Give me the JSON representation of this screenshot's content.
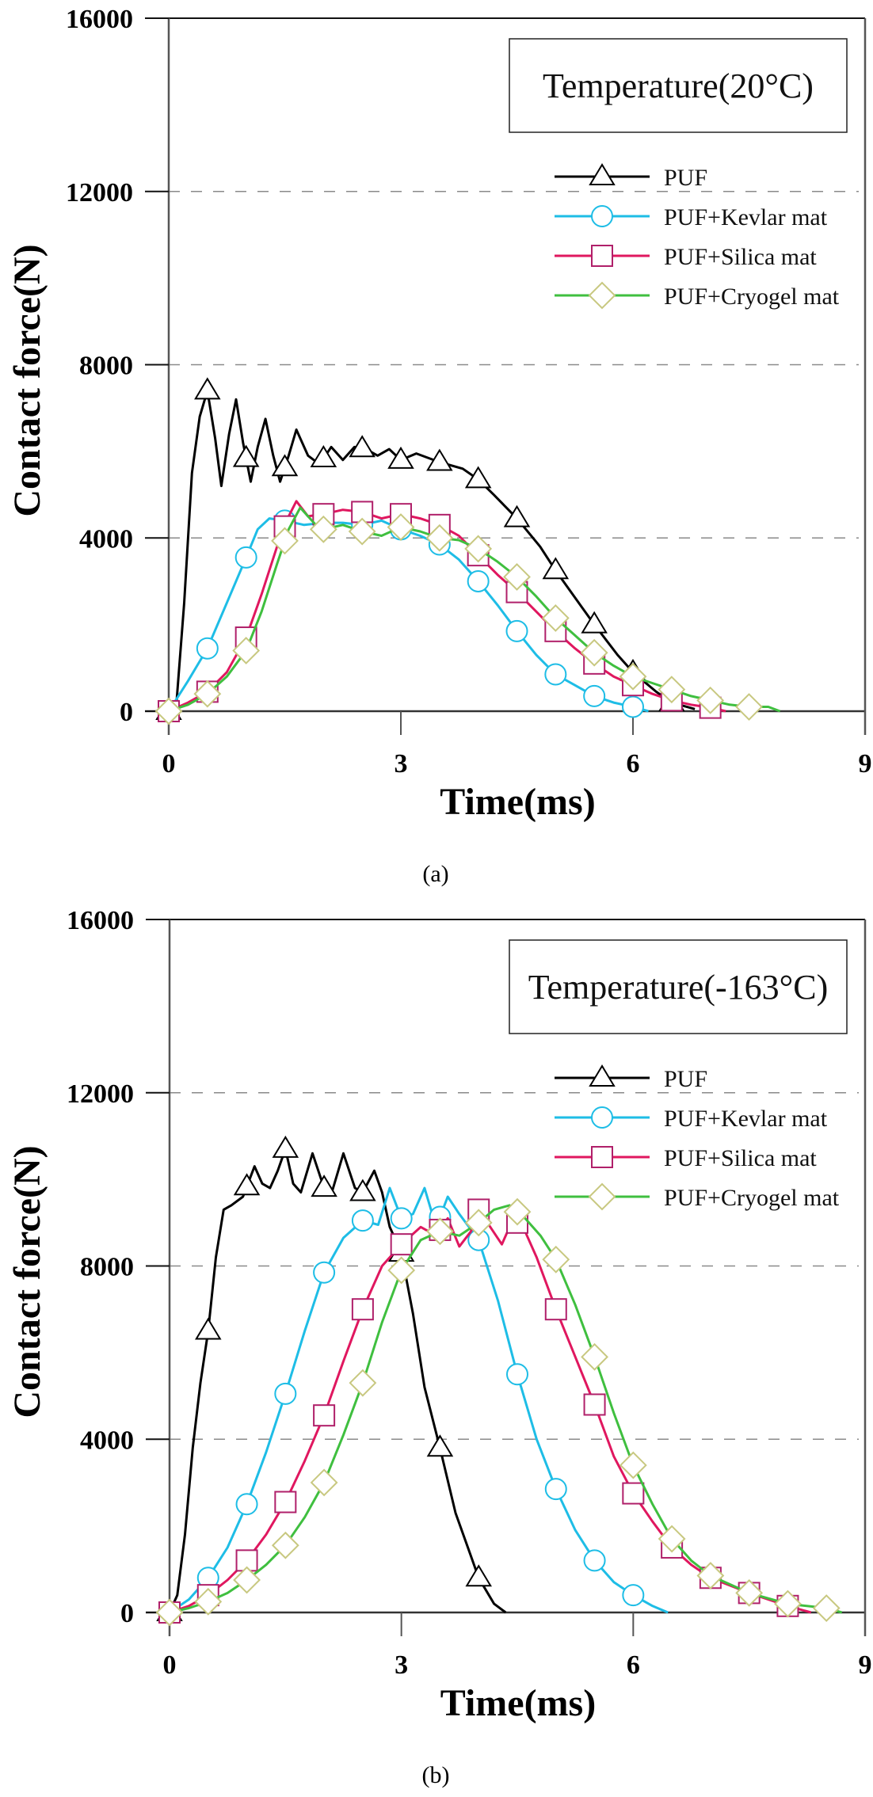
{
  "chart_data": [
    {
      "type": "line",
      "panel": "a",
      "caption": "(a)",
      "annotation": "Temperature(20°C)",
      "xlabel": "Time(ms)",
      "ylabel": "Contact force(N)",
      "xlim": [
        0,
        9
      ],
      "ylim": [
        0,
        16000
      ],
      "xticks": [
        0,
        3,
        6,
        9
      ],
      "yticks": [
        0,
        4000,
        8000,
        12000,
        16000
      ],
      "grid": "dashed horizontal at 4000, 8000, 12000",
      "legend": "right, below annotation box",
      "series": [
        {
          "name": "PUF",
          "color": "#000000",
          "marker": "triangle",
          "x": [
            0,
            0.1,
            0.2,
            0.3,
            0.4,
            0.5,
            0.6,
            0.68,
            0.78,
            0.87,
            0.96,
            1.06,
            1.15,
            1.25,
            1.35,
            1.44,
            1.55,
            1.65,
            1.8,
            1.95,
            2.1,
            2.25,
            2.4,
            2.55,
            2.7,
            2.85,
            3.0,
            3.2,
            3.5,
            3.8,
            4.0,
            4.2,
            4.5,
            4.8,
            5.0,
            5.3,
            5.5,
            5.8,
            6.0,
            6.3,
            6.5,
            6.8
          ],
          "y": [
            0,
            200,
            2500,
            5500,
            6800,
            7400,
            6300,
            5200,
            6400,
            7200,
            6200,
            5300,
            6100,
            6750,
            5900,
            5300,
            5900,
            6500,
            5900,
            5700,
            6100,
            5800,
            6100,
            6050,
            5900,
            6050,
            5800,
            5950,
            5750,
            5600,
            5350,
            5000,
            4450,
            3800,
            3250,
            2500,
            2000,
            1300,
            900,
            450,
            200,
            50
          ],
          "marker_x": [
            0,
            0.5,
            1.0,
            1.5,
            2.0,
            2.5,
            3.0,
            3.5,
            4.0,
            4.5,
            5.0,
            5.5,
            6.0,
            6.5
          ]
        },
        {
          "name": "PUF+Kevlar mat",
          "color": "#1ebde6",
          "marker": "circle",
          "x": [
            0,
            0.25,
            0.5,
            0.75,
            1.0,
            1.15,
            1.3,
            1.5,
            1.75,
            2.0,
            2.25,
            2.5,
            2.75,
            3.0,
            3.25,
            3.5,
            3.75,
            4.0,
            4.25,
            4.5,
            4.75,
            5.0,
            5.25,
            5.5,
            5.75,
            6.0,
            6.2
          ],
          "y": [
            0,
            700,
            1450,
            2500,
            3550,
            4200,
            4450,
            4400,
            4300,
            4350,
            4350,
            4300,
            4400,
            4200,
            4050,
            3850,
            3500,
            3000,
            2450,
            1850,
            1300,
            850,
            600,
            350,
            200,
            100,
            0
          ],
          "marker_x": [
            0,
            0.5,
            1.0,
            1.5,
            2.0,
            2.5,
            3.0,
            3.5,
            4.0,
            4.5,
            5.0,
            5.5,
            6.0
          ]
        },
        {
          "name": "PUF+Silica mat",
          "color": "#e0175f",
          "marker": "square",
          "x": [
            0,
            0.25,
            0.5,
            0.75,
            1.0,
            1.2,
            1.4,
            1.55,
            1.65,
            1.8,
            2.0,
            2.25,
            2.5,
            2.75,
            3.0,
            3.25,
            3.5,
            3.75,
            4.0,
            4.25,
            4.5,
            4.75,
            5.0,
            5.25,
            5.5,
            5.75,
            6.0,
            6.25,
            6.5,
            6.75,
            7.0,
            7.2
          ],
          "y": [
            0,
            200,
            450,
            900,
            1700,
            2700,
            3800,
            4500,
            4850,
            4500,
            4550,
            4650,
            4600,
            4450,
            4550,
            4450,
            4300,
            4050,
            3600,
            3150,
            2750,
            2300,
            1850,
            1450,
            1100,
            800,
            600,
            400,
            250,
            150,
            80,
            0
          ],
          "marker_x": [
            0,
            0.5,
            1.0,
            1.5,
            2.0,
            2.5,
            3.0,
            3.5,
            4.0,
            4.5,
            5.0,
            5.5,
            6.0,
            6.5,
            7.0
          ]
        },
        {
          "name": "PUF+Cryogel mat",
          "color": "#3fbf3f",
          "marker_color": "#c8c880",
          "marker": "diamond",
          "x": [
            0,
            0.25,
            0.5,
            0.75,
            1.0,
            1.2,
            1.4,
            1.55,
            1.7,
            1.9,
            2.0,
            2.25,
            2.5,
            2.75,
            3.0,
            3.25,
            3.5,
            3.75,
            4.0,
            4.25,
            4.5,
            4.75,
            5.0,
            5.25,
            5.5,
            5.75,
            6.0,
            6.25,
            6.5,
            6.75,
            7.0,
            7.25,
            7.5,
            7.75,
            7.9
          ],
          "y": [
            0,
            150,
            400,
            800,
            1400,
            2300,
            3400,
            4200,
            4700,
            4300,
            4200,
            4300,
            4150,
            4050,
            4250,
            4150,
            4000,
            3950,
            3750,
            3450,
            3100,
            2650,
            2150,
            1750,
            1350,
            1050,
            800,
            650,
            500,
            350,
            250,
            150,
            100,
            100,
            0
          ],
          "marker_x": [
            0,
            0.5,
            1.0,
            1.5,
            2.0,
            2.5,
            3.0,
            3.5,
            4.0,
            4.5,
            5.0,
            5.5,
            6.0,
            6.5,
            7.0,
            7.5
          ]
        }
      ]
    },
    {
      "type": "line",
      "panel": "b",
      "caption": "(b)",
      "annotation": "Temperature(-163°C)",
      "xlabel": "Time(ms)",
      "ylabel": "Contact force(N)",
      "xlim": [
        0,
        9
      ],
      "ylim": [
        0,
        16000
      ],
      "xticks": [
        0,
        3,
        6,
        9
      ],
      "yticks": [
        0,
        4000,
        8000,
        12000,
        16000
      ],
      "grid": "dashed horizontal at 4000, 8000, 12000",
      "legend": "right, below annotation box",
      "series": [
        {
          "name": "PUF",
          "color": "#000000",
          "marker": "triangle",
          "x": [
            0,
            0.1,
            0.2,
            0.3,
            0.4,
            0.5,
            0.6,
            0.7,
            0.8,
            0.95,
            1.1,
            1.2,
            1.3,
            1.4,
            1.5,
            1.6,
            1.7,
            1.85,
            2.0,
            2.1,
            2.25,
            2.4,
            2.5,
            2.65,
            2.75,
            2.85,
            3.0,
            3.15,
            3.3,
            3.5,
            3.7,
            3.9,
            4.0,
            4.2,
            4.35
          ],
          "y": [
            0,
            400,
            1800,
            3800,
            5300,
            6500,
            8200,
            9300,
            9400,
            9600,
            10300,
            9900,
            9800,
            10200,
            10700,
            9900,
            9700,
            10600,
            9800,
            9700,
            10600,
            9800,
            9700,
            10200,
            9700,
            8900,
            8300,
            6900,
            5200,
            3800,
            2300,
            1300,
            800,
            200,
            0
          ],
          "marker_x": [
            0,
            0.5,
            1.0,
            1.5,
            2.0,
            2.5,
            3.0,
            3.5,
            4.0
          ]
        },
        {
          "name": "PUF+Kevlar mat",
          "color": "#1ebde6",
          "marker": "circle",
          "x": [
            0,
            0.25,
            0.5,
            0.75,
            1.0,
            1.25,
            1.5,
            1.75,
            2.0,
            2.25,
            2.5,
            2.7,
            2.85,
            3.0,
            3.15,
            3.3,
            3.45,
            3.6,
            3.75,
            4.0,
            4.25,
            4.5,
            4.75,
            5.0,
            5.25,
            5.5,
            5.75,
            6.0,
            6.25,
            6.45
          ],
          "y": [
            0,
            300,
            800,
            1500,
            2500,
            3700,
            5050,
            6500,
            7850,
            8650,
            9050,
            8950,
            9800,
            9100,
            9200,
            9800,
            8900,
            9600,
            9200,
            8600,
            7200,
            5500,
            4000,
            2850,
            1900,
            1200,
            700,
            400,
            150,
            0
          ],
          "marker_x": [
            0,
            0.5,
            1.0,
            1.5,
            2.0,
            2.5,
            3.0,
            3.5,
            4.0,
            4.5,
            5.0,
            5.5,
            6.0
          ]
        },
        {
          "name": "PUF+Silica mat",
          "color": "#e0175f",
          "marker": "square",
          "x": [
            0,
            0.25,
            0.5,
            0.75,
            1.0,
            1.25,
            1.5,
            1.75,
            2.0,
            2.25,
            2.5,
            2.75,
            3.0,
            3.25,
            3.45,
            3.6,
            3.75,
            3.9,
            4.0,
            4.15,
            4.3,
            4.45,
            4.6,
            4.75,
            5.0,
            5.25,
            5.5,
            5.75,
            6.0,
            6.25,
            6.5,
            6.75,
            7.0,
            7.5,
            8.0,
            8.3
          ],
          "y": [
            0,
            150,
            400,
            750,
            1200,
            1800,
            2550,
            3500,
            4550,
            5800,
            7000,
            8000,
            8500,
            8900,
            8700,
            9100,
            8450,
            8800,
            9300,
            8900,
            8500,
            9100,
            8800,
            8200,
            7000,
            5900,
            4800,
            3600,
            2750,
            2100,
            1500,
            1100,
            800,
            450,
            150,
            0
          ],
          "marker_x": [
            0,
            0.5,
            1.0,
            1.5,
            2.0,
            2.5,
            3.0,
            3.5,
            4.0,
            4.5,
            5.0,
            5.5,
            6.0,
            6.5,
            7.0,
            7.5,
            8.0
          ]
        },
        {
          "name": "PUF+Cryogel mat",
          "color": "#3fbf3f",
          "marker_color": "#c8c880",
          "marker": "diamond",
          "x": [
            0,
            0.25,
            0.5,
            0.75,
            1.0,
            1.25,
            1.5,
            1.75,
            2.0,
            2.25,
            2.5,
            2.75,
            3.0,
            3.25,
            3.5,
            3.75,
            4.0,
            4.2,
            4.4,
            4.6,
            4.8,
            5.0,
            5.25,
            5.5,
            5.75,
            6.0,
            6.25,
            6.5,
            6.75,
            7.0,
            7.5,
            8.0,
            8.5,
            8.7
          ],
          "y": [
            0,
            100,
            250,
            450,
            750,
            1100,
            1550,
            2200,
            3000,
            4100,
            5300,
            6700,
            7900,
            8600,
            8800,
            8700,
            9000,
            9300,
            9400,
            9100,
            8700,
            8150,
            7100,
            5900,
            4600,
            3400,
            2500,
            1700,
            1200,
            850,
            450,
            200,
            100,
            0
          ],
          "marker_x": [
            0,
            0.5,
            1.0,
            1.5,
            2.0,
            2.5,
            3.0,
            3.5,
            4.0,
            4.5,
            5.0,
            5.5,
            6.0,
            6.5,
            7.0,
            7.5,
            8.0,
            8.5
          ]
        }
      ]
    }
  ]
}
